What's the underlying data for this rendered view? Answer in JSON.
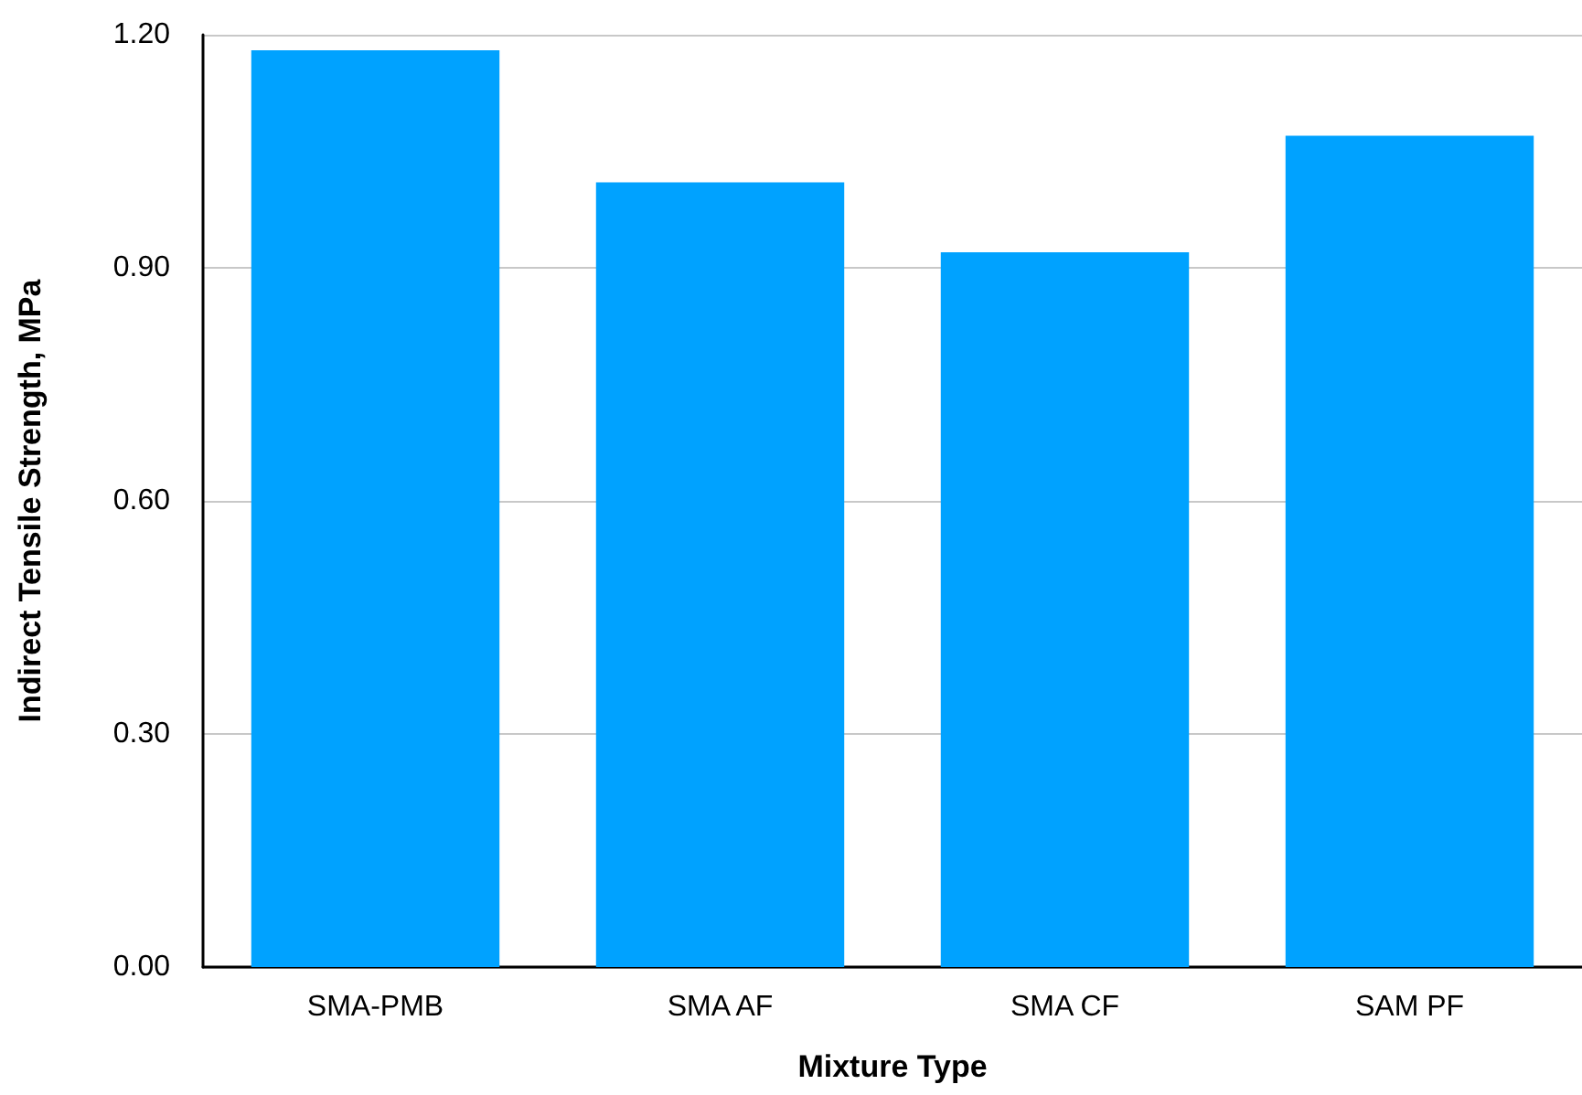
{
  "chart_data": {
    "type": "bar",
    "xlabel": "Mixture Type",
    "ylabel": "Indirect Tensile Strength, MPa",
    "categories": [
      "SMA-PMB",
      "SMA AF",
      "SMA CF",
      "SAM PF"
    ],
    "values": [
      1.18,
      1.01,
      0.92,
      1.07
    ],
    "color": "#00a2ff",
    "ylim": [
      0,
      1.2
    ],
    "yticks": [
      {
        "value": 0,
        "label": "0.00"
      },
      {
        "value": 0.3,
        "label": "0.30"
      },
      {
        "value": 0.6,
        "label": "0.60"
      },
      {
        "value": 0.9,
        "label": "0.90"
      },
      {
        "value": 1.2,
        "label": "1.20"
      }
    ],
    "grid": "y"
  }
}
